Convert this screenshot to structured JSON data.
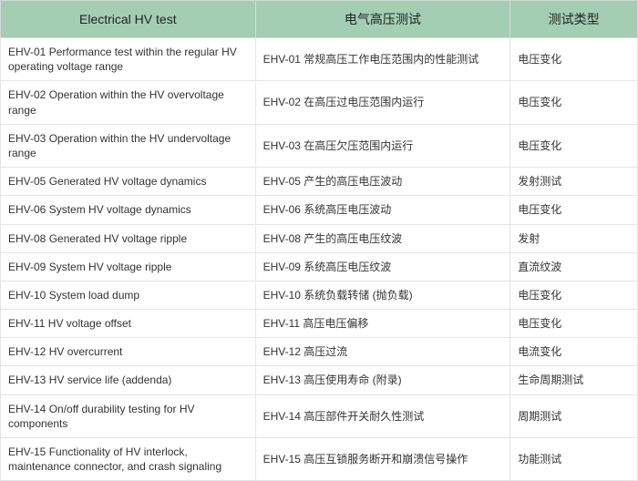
{
  "table": {
    "header_bg": "#a3ceb4",
    "columns": [
      "Electrical HV test",
      "电气高压测试",
      "测试类型"
    ],
    "rows": [
      [
        "EHV-01  Performance test within the regular HV operating voltage range",
        "EHV-01 常规高压工作电压范围内的性能测试",
        "电压变化"
      ],
      [
        "EHV-02 Operation within the HV overvoltage range",
        "EHV-02 在高压过电压范围内运行",
        "电压变化"
      ],
      [
        "EHV-03 Operation within the HV undervoltage range",
        "EHV-03 在高压欠压范围内运行",
        "电压变化"
      ],
      [
        "EHV-05 Generated HV voltage dynamics",
        "EHV-05 产生的高压电压波动",
        "发射测试"
      ],
      [
        "EHV-06 System HV voltage dynamics",
        "EHV-06 系统高压电压波动",
        "电压变化"
      ],
      [
        "EHV-08 Generated HV voltage ripple",
        "EHV-08 产生的高压电压纹波",
        "发射"
      ],
      [
        "EHV-09 System HV voltage ripple",
        "EHV-09 系统高压电压纹波",
        "直流纹波"
      ],
      [
        "EHV-10 System load dump",
        "EHV-10 系统负载转储 (抛负载)",
        "电压变化"
      ],
      [
        "EHV-11 HV voltage offset",
        "EHV-11 高压电压偏移",
        "电压变化"
      ],
      [
        "EHV-12 HV overcurrent",
        "EHV-12 高压过流",
        "电流变化"
      ],
      [
        "EHV-13 HV service life (addenda)",
        "EHV-13 高压使用寿命 (附录)",
        "生命周期测试"
      ],
      [
        "EHV-14 On/off durability testing for HV components",
        "EHV-14 高压部件开关耐久性测试",
        "周期测试"
      ],
      [
        "EHV-15 Functionality of HV interlock, maintenance connector, and crash signaling",
        "EHV-15 高压互锁服务断开和崩溃信号操作",
        "功能测试"
      ]
    ]
  }
}
